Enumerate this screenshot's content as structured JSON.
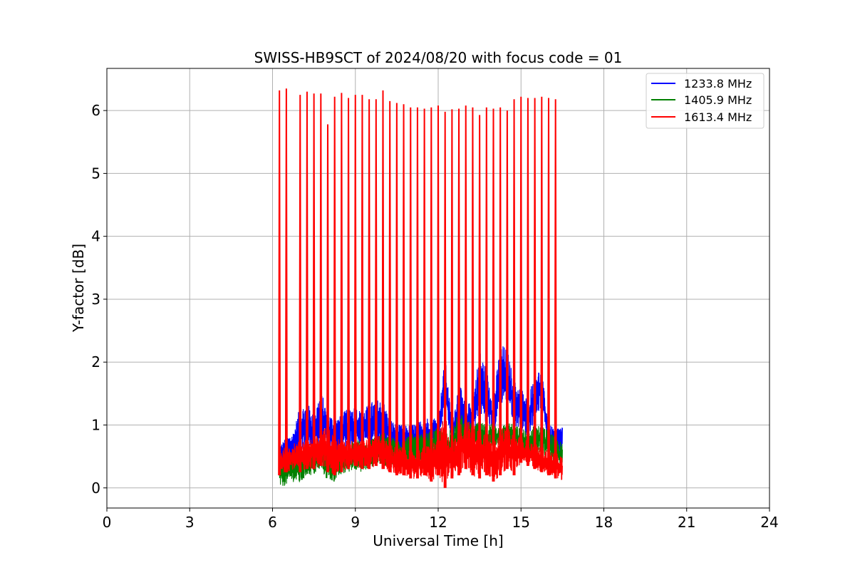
{
  "chart_data": {
    "type": "line",
    "title": "SWISS-HB9SCT of 2024/08/20 with focus code = 01",
    "xlabel": "Universal Time [h]",
    "ylabel": "Y-factor [dB]",
    "xlim": [
      0,
      24
    ],
    "ylim": [
      -0.32,
      6.67
    ],
    "xticks": [
      0,
      3,
      6,
      9,
      12,
      15,
      18,
      21,
      24
    ],
    "yticks": [
      0,
      1,
      2,
      3,
      4,
      5,
      6
    ],
    "grid": true,
    "legend_position": "top-right",
    "x_range": [
      6.25,
      16.5
    ],
    "series": [
      {
        "name": "1233.8 MHz",
        "color": "#0000ff",
        "x": [
          6.25,
          6.5,
          6.75,
          7.0,
          7.25,
          7.5,
          7.75,
          8.0,
          8.25,
          8.5,
          8.75,
          9.0,
          9.25,
          9.5,
          9.75,
          10.0,
          10.25,
          10.5,
          10.75,
          11.0,
          11.25,
          11.5,
          11.75,
          12.0,
          12.25,
          12.5,
          12.75,
          13.0,
          13.25,
          13.5,
          13.75,
          14.0,
          14.25,
          14.5,
          14.75,
          15.0,
          15.25,
          15.5,
          15.75,
          16.0,
          16.25,
          16.5
        ],
        "lo": [
          0.1,
          0.35,
          0.4,
          0.45,
          0.6,
          0.55,
          0.7,
          0.6,
          0.55,
          0.6,
          0.65,
          0.7,
          0.7,
          0.65,
          0.75,
          0.7,
          0.6,
          0.55,
          0.5,
          0.5,
          0.55,
          0.6,
          0.65,
          0.7,
          1.3,
          0.7,
          0.9,
          0.75,
          0.9,
          1.1,
          1.05,
          0.8,
          1.3,
          1.4,
          1.0,
          0.9,
          0.8,
          1.1,
          1.3,
          0.6,
          0.5,
          0.55
        ],
        "hi": [
          0.7,
          0.8,
          0.9,
          1.3,
          1.35,
          1.2,
          1.55,
          1.2,
          1.1,
          1.15,
          1.3,
          1.3,
          1.2,
          1.35,
          1.4,
          1.4,
          1.1,
          1.0,
          1.0,
          1.0,
          1.05,
          1.1,
          1.15,
          1.1,
          2.1,
          1.0,
          1.7,
          1.3,
          1.4,
          2.2,
          1.9,
          1.4,
          2.3,
          2.2,
          1.7,
          1.6,
          1.4,
          1.9,
          1.85,
          1.0,
          0.95,
          1.0
        ]
      },
      {
        "name": "1405.9 MHz",
        "color": "#008000",
        "x": [
          6.25,
          6.5,
          6.75,
          7.0,
          7.25,
          7.5,
          7.75,
          8.0,
          8.25,
          8.5,
          8.75,
          9.0,
          9.25,
          9.5,
          9.75,
          10.0,
          10.25,
          10.5,
          10.75,
          11.0,
          11.25,
          11.5,
          11.75,
          12.0,
          12.25,
          12.5,
          12.75,
          13.0,
          13.25,
          13.5,
          13.75,
          14.0,
          14.25,
          14.5,
          14.75,
          15.0,
          15.25,
          15.5,
          15.75,
          16.0,
          16.25,
          16.5
        ],
        "lo": [
          0.0,
          0.05,
          0.1,
          0.05,
          0.2,
          0.2,
          0.3,
          0.1,
          0.1,
          0.2,
          0.25,
          0.3,
          0.25,
          0.3,
          0.4,
          0.35,
          0.35,
          0.4,
          0.35,
          0.4,
          0.45,
          0.4,
          0.5,
          0.5,
          0.3,
          0.45,
          0.55,
          0.5,
          0.6,
          0.6,
          0.5,
          0.6,
          0.65,
          0.7,
          0.65,
          0.5,
          0.45,
          0.5,
          0.6,
          0.4,
          0.35,
          0.3
        ],
        "hi": [
          0.45,
          0.5,
          0.55,
          0.6,
          0.7,
          0.65,
          0.75,
          0.65,
          0.6,
          0.65,
          0.7,
          0.8,
          0.7,
          0.75,
          0.85,
          0.9,
          0.8,
          0.8,
          0.8,
          0.85,
          0.85,
          0.85,
          0.9,
          0.95,
          0.85,
          1.0,
          1.2,
          1.1,
          1.0,
          1.05,
          1.0,
          1.05,
          0.95,
          1.05,
          1.0,
          0.95,
          0.9,
          1.0,
          1.0,
          0.9,
          0.8,
          0.7
        ]
      },
      {
        "name": "1613.4 MHz",
        "color": "#ff0000",
        "x": [
          6.25,
          6.5,
          6.75,
          7.0,
          7.25,
          7.5,
          7.75,
          8.0,
          8.25,
          8.5,
          8.75,
          9.0,
          9.25,
          9.5,
          9.75,
          10.0,
          10.25,
          10.5,
          10.75,
          11.0,
          11.25,
          11.5,
          11.75,
          12.0,
          12.25,
          12.5,
          12.75,
          13.0,
          13.25,
          13.5,
          13.75,
          14.0,
          14.25,
          14.5,
          14.75,
          15.0,
          15.25,
          15.5,
          15.75,
          16.0,
          16.25,
          16.5
        ],
        "lo": [
          0.2,
          0.25,
          0.3,
          0.25,
          0.3,
          0.3,
          0.35,
          0.25,
          0.2,
          0.25,
          0.3,
          0.35,
          0.3,
          0.3,
          0.35,
          0.3,
          0.25,
          0.2,
          0.2,
          0.15,
          0.15,
          0.2,
          0.1,
          0.2,
          0.0,
          0.15,
          0.2,
          0.3,
          0.2,
          0.15,
          0.2,
          0.1,
          0.2,
          0.3,
          0.2,
          0.4,
          0.35,
          0.3,
          0.25,
          0.2,
          0.15,
          0.1
        ],
        "hi": [
          0.6,
          0.65,
          0.7,
          0.75,
          0.8,
          0.8,
          0.9,
          1.0,
          0.8,
          0.75,
          0.75,
          0.8,
          0.8,
          0.75,
          0.85,
          0.8,
          0.7,
          0.65,
          0.65,
          0.6,
          0.6,
          0.65,
          0.7,
          0.8,
          1.2,
          0.7,
          1.0,
          1.1,
          1.0,
          1.0,
          0.9,
          0.8,
          0.95,
          0.95,
          0.85,
          0.8,
          0.75,
          0.7,
          0.65,
          0.6,
          0.55,
          0.5
        ]
      }
    ],
    "spikes": {
      "series": "1613.4 MHz",
      "x": [
        6.25,
        6.5,
        7.0,
        7.25,
        7.5,
        7.75,
        8.0,
        8.25,
        8.5,
        8.75,
        9.0,
        9.25,
        9.5,
        9.75,
        10.0,
        10.25,
        10.5,
        10.75,
        11.0,
        11.25,
        11.5,
        11.75,
        12.0,
        12.25,
        12.5,
        12.75,
        13.0,
        13.25,
        13.5,
        13.75,
        14.0,
        14.25,
        14.5,
        14.75,
        15.0,
        15.25,
        15.5,
        15.75,
        16.0,
        16.25
      ],
      "y": [
        6.32,
        6.35,
        6.25,
        6.3,
        6.27,
        6.27,
        5.78,
        6.22,
        6.28,
        6.2,
        6.25,
        6.25,
        6.18,
        6.18,
        6.32,
        6.15,
        6.12,
        6.1,
        6.05,
        6.05,
        6.03,
        6.05,
        6.08,
        5.98,
        6.02,
        6.03,
        6.08,
        6.05,
        5.93,
        6.05,
        6.03,
        6.05,
        6.0,
        6.18,
        6.22,
        6.2,
        6.2,
        6.22,
        6.2,
        6.18
      ]
    }
  }
}
